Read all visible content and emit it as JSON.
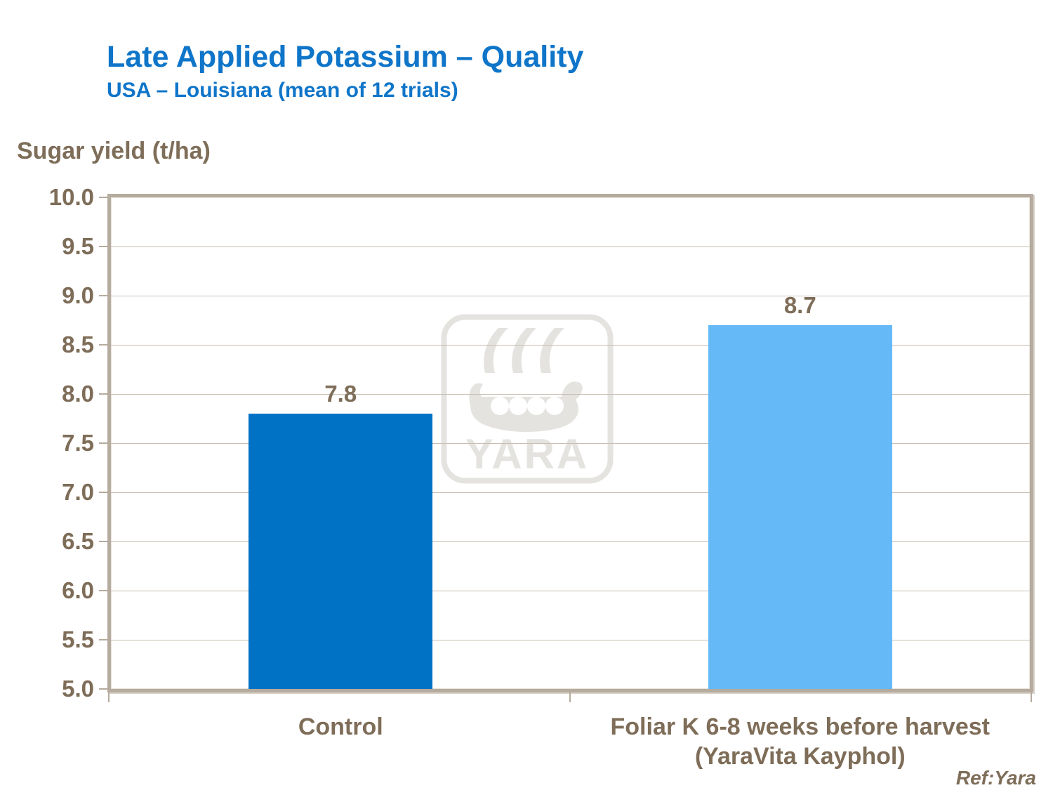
{
  "page": {
    "ref_label": "Ref:Yara"
  },
  "colors": {
    "title_blue": "#0f75c9",
    "text_taupe": "#7e6d58",
    "frame": "#b5ab9e",
    "gridline": "#c8beb2",
    "watermark_gray": "#e5e3e0"
  },
  "chart_data": {
    "type": "bar",
    "title": "Late Applied Potassium – Quality",
    "subtitle": "USA – Louisiana (mean of 12 trials)",
    "ylabel": "Sugar yield (t/ha)",
    "xlabel": "",
    "categories": [
      "Control",
      "Foliar K 6-8 weeks before harvest\n(YaraVita Kayphol)"
    ],
    "values": [
      7.8,
      8.7
    ],
    "value_labels": [
      "7.8",
      "8.7"
    ],
    "bar_colors": [
      "#0072c6",
      "#66b9f7"
    ],
    "ylim": [
      5.0,
      10.0
    ],
    "ytick_step": 0.5,
    "ytick_decimals": 1,
    "grid": true,
    "legend_position": "none",
    "watermark": "YARA",
    "annotation": "Ref:Yara"
  }
}
